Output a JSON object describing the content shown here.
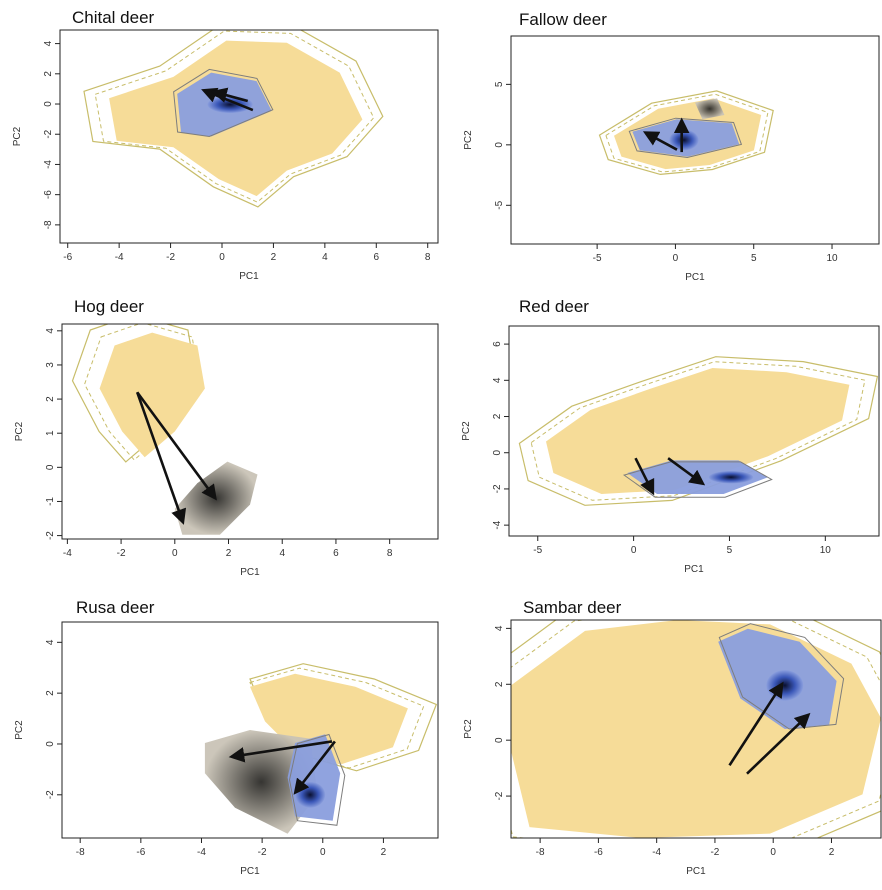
{
  "palette": {
    "yellow": "#f6dc98",
    "blue_light": "#8a9edd",
    "blue_mid": "#3a57b8",
    "blue_dark": "#0a1030",
    "grey_light": "#c9c3b6",
    "grey_dark": "#2b2a27",
    "contour_yellow": "#c8bd6a",
    "contour_grey": "#7d7d7d",
    "arrow": "#111111",
    "frame": "#222222"
  },
  "chart_data": [
    {
      "type": "scatter",
      "title": "Chital deer",
      "xlabel": "PC1",
      "ylabel": "PC2",
      "xlim": [
        -6.3,
        8.4
      ],
      "ylim": [
        -9.2,
        4.9
      ],
      "xticks": [
        -6,
        -4,
        -2,
        0,
        2,
        4,
        6,
        8
      ],
      "yticks": [
        -8,
        -6,
        -4,
        -2,
        0,
        2,
        4
      ],
      "arrows": [
        {
          "from": [
            1.2,
            -0.4
          ],
          "to": [
            -0.7,
            0.9
          ]
        },
        {
          "from": [
            1.0,
            0.2
          ],
          "to": [
            -0.3,
            0.8
          ]
        }
      ]
    },
    {
      "type": "scatter",
      "title": "Fallow deer",
      "xlabel": "PC1",
      "ylabel": "PC2",
      "xlim": [
        -10.5,
        13.0
      ],
      "ylim": [
        -8.2,
        9.0
      ],
      "xticks": [
        -5,
        0,
        5,
        10
      ],
      "yticks": [
        -5,
        0,
        5
      ],
      "arrows": [
        {
          "from": [
            0.4,
            -0.6
          ],
          "to": [
            0.4,
            2.0
          ]
        },
        {
          "from": [
            0.1,
            -0.4
          ],
          "to": [
            -1.9,
            1.0
          ]
        }
      ]
    },
    {
      "type": "scatter",
      "title": "Hog deer",
      "xlabel": "PC1",
      "ylabel": "PC2",
      "xlim": [
        -4.2,
        9.8
      ],
      "ylim": [
        -2.1,
        4.2
      ],
      "xticks": [
        -4,
        -2,
        0,
        2,
        4,
        6,
        8
      ],
      "yticks": [
        -2,
        -1,
        0,
        1,
        2,
        3,
        4
      ],
      "arrows": [
        {
          "from": [
            -1.4,
            2.2
          ],
          "to": [
            0.3,
            -1.6
          ]
        },
        {
          "from": [
            -1.4,
            2.2
          ],
          "to": [
            1.5,
            -0.9
          ]
        }
      ]
    },
    {
      "type": "scatter",
      "title": "Red deer",
      "xlabel": "PC1",
      "ylabel": "PC2",
      "xlim": [
        -6.5,
        12.8
      ],
      "ylim": [
        -4.6,
        7.0
      ],
      "xticks": [
        -5,
        0,
        5,
        10
      ],
      "yticks": [
        -4,
        -2,
        0,
        2,
        4,
        6
      ],
      "arrows": [
        {
          "from": [
            0.1,
            -0.3
          ],
          "to": [
            1.0,
            -2.2
          ]
        },
        {
          "from": [
            1.8,
            -0.3
          ],
          "to": [
            3.6,
            -1.7
          ]
        }
      ]
    },
    {
      "type": "scatter",
      "title": "Rusa deer",
      "xlabel": "PC1",
      "ylabel": "PC2",
      "xlim": [
        -8.6,
        3.8
      ],
      "ylim": [
        -3.7,
        4.8
      ],
      "xticks": [
        -8,
        -6,
        -4,
        -2,
        0,
        2
      ],
      "yticks": [
        -2,
        0,
        2,
        4
      ],
      "arrows": [
        {
          "from": [
            0.3,
            0.1
          ],
          "to": [
            -3.0,
            -0.5
          ]
        },
        {
          "from": [
            0.4,
            0.1
          ],
          "to": [
            -0.9,
            -1.9
          ]
        }
      ]
    },
    {
      "type": "scatter",
      "title": "Sambar deer",
      "xlabel": "PC1",
      "ylabel": "PC2",
      "xlim": [
        -9.0,
        3.7
      ],
      "ylim": [
        -3.5,
        4.3
      ],
      "xticks": [
        -8,
        -6,
        -4,
        -2,
        0,
        2
      ],
      "yticks": [
        -2,
        0,
        2,
        4
      ],
      "arrows": [
        {
          "from": [
            -1.5,
            -0.9
          ],
          "to": [
            0.3,
            2.0
          ]
        },
        {
          "from": [
            -0.9,
            -1.2
          ],
          "to": [
            1.2,
            0.9
          ]
        }
      ]
    }
  ]
}
